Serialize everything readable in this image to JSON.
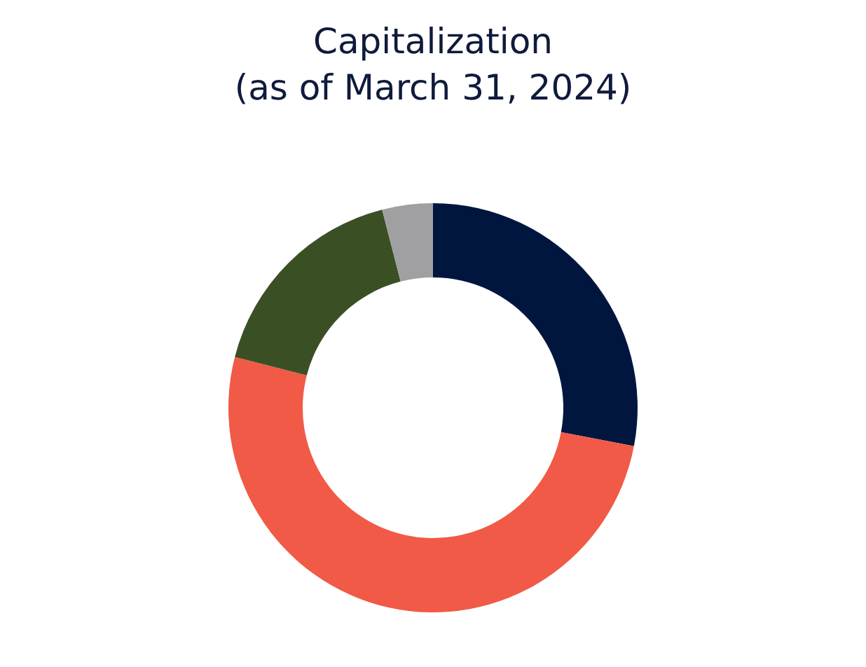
{
  "chart_data": {
    "type": "donut",
    "title": "Capitalization",
    "subtitle": "(as of March 31, 2024)",
    "categories": [
      null,
      null,
      null,
      null
    ],
    "values": [
      28,
      51,
      17,
      4
    ],
    "colors": [
      "#00163f",
      "#f05a46",
      "#3b4f25",
      "#a0a0a2"
    ]
  }
}
